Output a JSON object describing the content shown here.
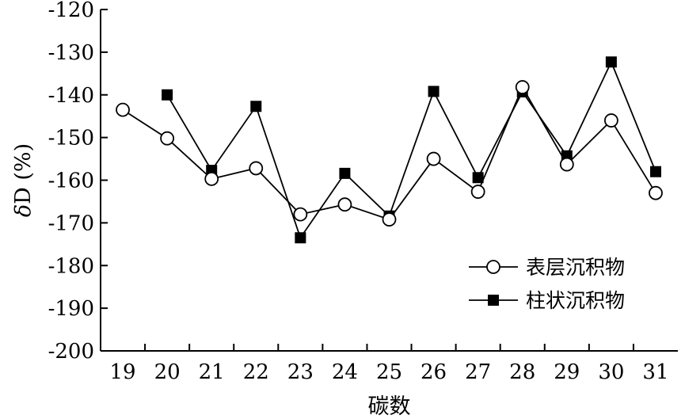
{
  "chart_data": {
    "type": "line",
    "title": "",
    "xlabel": "碳数",
    "ylabel": "δD (%)",
    "ylabel_symbol": "δ",
    "ylabel_rest": "D (%)",
    "categories": [
      "19",
      "20",
      "21",
      "22",
      "23",
      "24",
      "25",
      "26",
      "27",
      "28",
      "29",
      "30",
      "31"
    ],
    "ylim": [
      -200,
      -120
    ],
    "yticks": [
      -120,
      -130,
      -140,
      -150,
      -160,
      -170,
      -180,
      -190,
      -200
    ],
    "ytick_labels": [
      "-120",
      "-130",
      "-140",
      "-150",
      "-160",
      "-170",
      "-180",
      "-190",
      "-200"
    ],
    "grid": false,
    "legend_position": "bottom-right",
    "series": [
      {
        "name": "表层沉积物",
        "marker": "open-circle",
        "color": "#000000",
        "values": [
          -143.5,
          -150.2,
          -159.7,
          -157.2,
          -168.0,
          -165.7,
          -169.2,
          -155.0,
          -162.7,
          -138.2,
          -156.3,
          -146.0,
          -163.0
        ]
      },
      {
        "name": "柱状沉积物",
        "marker": "filled-square",
        "color": "#000000",
        "values": [
          null,
          -140.0,
          -157.7,
          -142.7,
          -173.5,
          -158.4,
          -168.4,
          -139.2,
          -159.4,
          -139.3,
          -154.3,
          -132.3,
          -158.0
        ]
      }
    ]
  }
}
